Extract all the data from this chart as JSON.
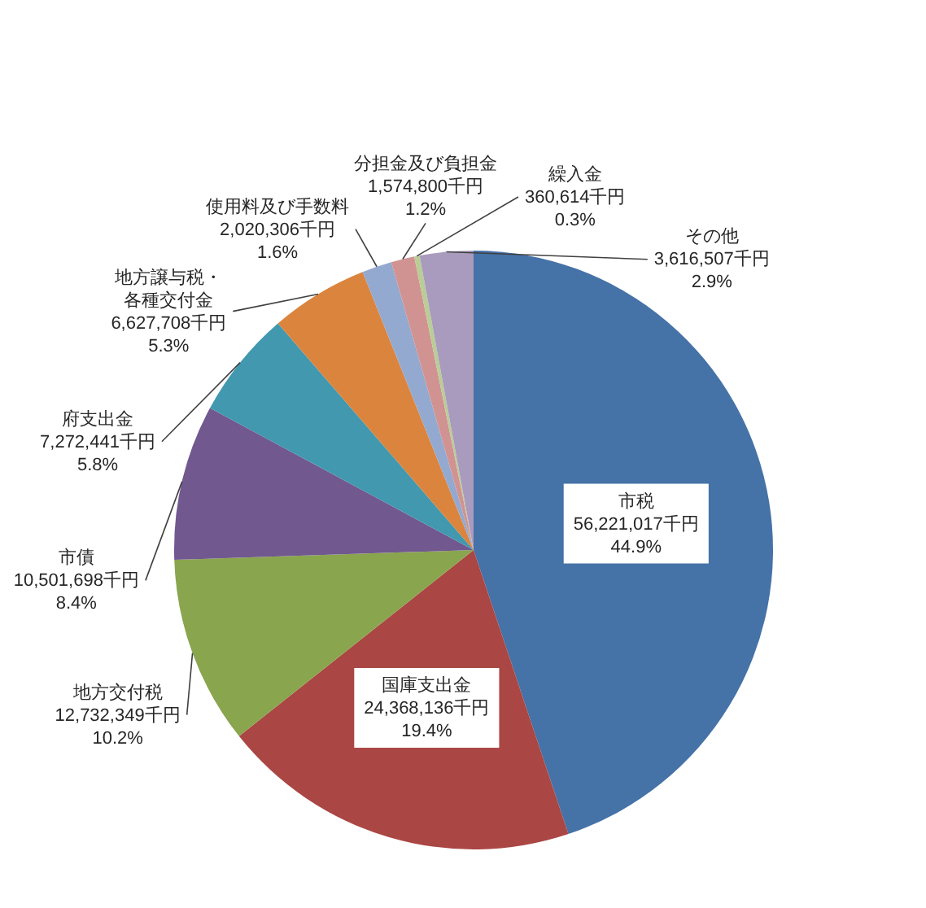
{
  "chart_data": {
    "type": "pie",
    "categories": [
      "市税",
      "国庫支出金",
      "地方交付税",
      "市債",
      "府支出金",
      "地方譲与税・各種交付金",
      "使用料及び手数料",
      "分担金及び負担金",
      "繰入金",
      "その他"
    ],
    "values": [
      56221017,
      24368136,
      12732349,
      10501698,
      7272441,
      6627708,
      2020306,
      1574800,
      360614,
      3616507
    ],
    "colors": [
      "#4572a7",
      "#aa4643",
      "#89a54e",
      "#71588f",
      "#4198af",
      "#db843d",
      "#93a9cf",
      "#d19392",
      "#b9cd96",
      "#a99bbd"
    ],
    "value_labels": [
      "56,221,017千円\n44.9%",
      "24,368,136千円\n19.4%",
      "12,732,349千円\n10.2%",
      "10,501,698千円\n8.4%",
      "7,272,441千円\n5.8%",
      "6,627,708千円\n5.3%",
      "2,020,306千円\n1.6%",
      "1,574,800千円\n1.2%",
      "360,614千円\n0.3%",
      "3,616,507千円\n2.9%"
    ]
  }
}
